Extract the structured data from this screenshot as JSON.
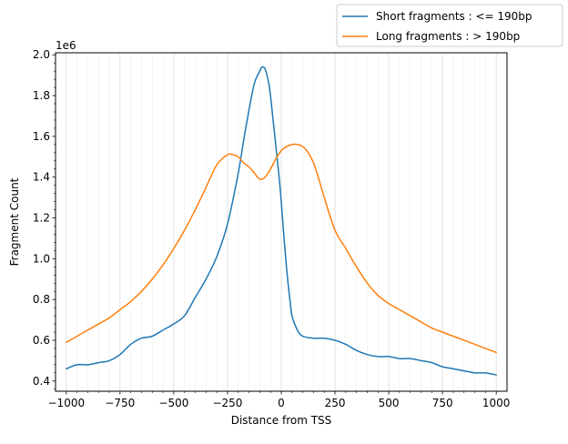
{
  "chart_data": {
    "type": "line",
    "title": "",
    "xlabel": "Distance from TSS",
    "ylabel": "Fragment Count",
    "y_offset_label": "1e6",
    "xlim": [
      -1050,
      1050
    ],
    "ylim": [
      0.35,
      2.01
    ],
    "grid": "vertical-major-and-minor",
    "legend_position": "outside-top-right",
    "x_ticks": [
      -1000,
      -750,
      -500,
      -250,
      0,
      250,
      500,
      750,
      1000
    ],
    "x_tick_labels": [
      "−1000",
      "−750",
      "−500",
      "−250",
      "0",
      "250",
      "500",
      "750",
      "1000"
    ],
    "y_ticks": [
      0.4,
      0.6,
      0.8,
      1.0,
      1.2,
      1.4,
      1.6,
      1.8,
      2.0
    ],
    "y_tick_labels": [
      "0.4",
      "0.6",
      "0.8",
      "1.0",
      "1.2",
      "1.4",
      "1.6",
      "1.8",
      "2.0"
    ],
    "series": [
      {
        "name": "Short fragments : <= 190bp",
        "color": "#1f77b4",
        "x": [
          -1000,
          -950,
          -900,
          -850,
          -800,
          -750,
          -700,
          -650,
          -600,
          -550,
          -500,
          -450,
          -400,
          -350,
          -300,
          -250,
          -200,
          -175,
          -150,
          -125,
          -100,
          -90,
          -75,
          -60,
          -50,
          -40,
          -25,
          -10,
          0,
          10,
          25,
          40,
          50,
          75,
          100,
          150,
          200,
          250,
          300,
          350,
          400,
          450,
          500,
          550,
          600,
          650,
          700,
          750,
          800,
          850,
          900,
          950,
          1000
        ],
        "y": [
          0.46,
          0.48,
          0.48,
          0.49,
          0.5,
          0.53,
          0.58,
          0.61,
          0.62,
          0.65,
          0.68,
          0.72,
          0.81,
          0.9,
          1.01,
          1.17,
          1.42,
          1.58,
          1.73,
          1.86,
          1.92,
          1.94,
          1.93,
          1.87,
          1.8,
          1.7,
          1.55,
          1.4,
          1.28,
          1.14,
          0.95,
          0.8,
          0.72,
          0.65,
          0.62,
          0.61,
          0.61,
          0.6,
          0.58,
          0.55,
          0.53,
          0.52,
          0.52,
          0.51,
          0.51,
          0.5,
          0.49,
          0.47,
          0.46,
          0.45,
          0.44,
          0.44,
          0.43
        ]
      },
      {
        "name": "Long fragments : > 190bp",
        "color": "#ff7f0e",
        "x": [
          -1000,
          -950,
          -900,
          -850,
          -800,
          -750,
          -700,
          -650,
          -600,
          -550,
          -500,
          -450,
          -400,
          -350,
          -300,
          -250,
          -225,
          -200,
          -175,
          -150,
          -125,
          -100,
          -75,
          -50,
          -25,
          0,
          25,
          50,
          75,
          100,
          125,
          150,
          175,
          200,
          250,
          300,
          350,
          400,
          450,
          500,
          550,
          600,
          650,
          700,
          750,
          800,
          850,
          900,
          950,
          1000
        ],
        "y": [
          0.59,
          0.62,
          0.65,
          0.68,
          0.71,
          0.75,
          0.79,
          0.84,
          0.9,
          0.97,
          1.05,
          1.14,
          1.24,
          1.35,
          1.46,
          1.51,
          1.51,
          1.5,
          1.47,
          1.45,
          1.42,
          1.39,
          1.4,
          1.44,
          1.49,
          1.53,
          1.55,
          1.56,
          1.56,
          1.55,
          1.52,
          1.47,
          1.39,
          1.3,
          1.14,
          1.05,
          0.96,
          0.88,
          0.82,
          0.78,
          0.75,
          0.72,
          0.69,
          0.66,
          0.64,
          0.62,
          0.6,
          0.58,
          0.56,
          0.54
        ]
      }
    ]
  }
}
